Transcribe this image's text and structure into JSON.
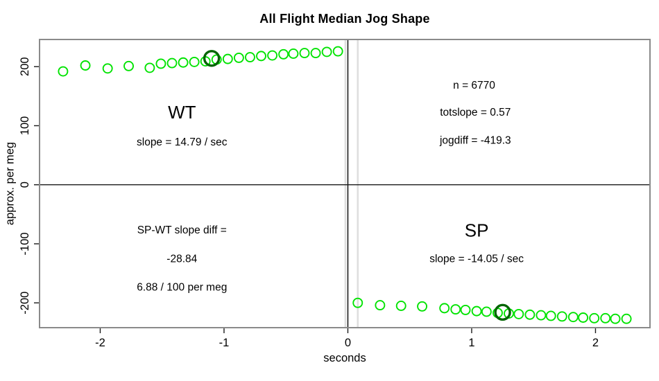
{
  "chart_data": {
    "type": "scatter",
    "title": "All Flight Median Jog Shape",
    "xlabel": "seconds",
    "ylabel": "approx. per meg",
    "xlim": [
      -2.49,
      2.44
    ],
    "ylim": [
      -242,
      246
    ],
    "x_ticks": [
      -2,
      -1,
      0,
      1,
      2
    ],
    "y_ticks": [
      -200,
      -100,
      0,
      100,
      200
    ],
    "grid": false,
    "point_color": "#00E300",
    "highlight_color": "#006400",
    "box_color": "#8a8a8a",
    "series": [
      {
        "name": "WT",
        "points": [
          [
            -2.3,
            192
          ],
          [
            -2.12,
            202
          ],
          [
            -1.94,
            197
          ],
          [
            -1.77,
            201
          ],
          [
            -1.6,
            198
          ],
          [
            -1.51,
            205
          ],
          [
            -1.42,
            206
          ],
          [
            -1.33,
            207
          ],
          [
            -1.24,
            208
          ],
          [
            -1.15,
            209
          ],
          [
            -1.06,
            212
          ],
          [
            -0.97,
            213
          ],
          [
            -0.88,
            215
          ],
          [
            -0.79,
            216
          ],
          [
            -0.7,
            218
          ],
          [
            -0.61,
            219
          ],
          [
            -0.52,
            221
          ],
          [
            -0.44,
            222
          ],
          [
            -0.35,
            223
          ],
          [
            -0.26,
            223
          ],
          [
            -0.17,
            225
          ],
          [
            -0.08,
            226
          ]
        ]
      },
      {
        "name": "SP",
        "points": [
          [
            0.08,
            -200
          ],
          [
            0.26,
            -204
          ],
          [
            0.43,
            -205
          ],
          [
            0.6,
            -206
          ],
          [
            0.78,
            -209
          ],
          [
            0.87,
            -211
          ],
          [
            0.95,
            -212
          ],
          [
            1.04,
            -214
          ],
          [
            1.12,
            -215
          ],
          [
            1.21,
            -217
          ],
          [
            1.3,
            -218
          ],
          [
            1.38,
            -219
          ],
          [
            1.47,
            -220
          ],
          [
            1.56,
            -221
          ],
          [
            1.64,
            -222
          ],
          [
            1.73,
            -223
          ],
          [
            1.82,
            -224
          ],
          [
            1.9,
            -225
          ],
          [
            1.99,
            -226
          ],
          [
            2.08,
            -226
          ],
          [
            2.16,
            -227
          ],
          [
            2.25,
            -227
          ]
        ]
      }
    ],
    "highlight_points": [
      {
        "series": "WT",
        "x": -1.1,
        "y": 214
      },
      {
        "series": "SP",
        "x": 1.25,
        "y": -216
      }
    ],
    "reference_lines": {
      "hline_y": 0,
      "vlines_black": [
        0
      ],
      "vlines_gray": [
        -0.02,
        0.08
      ],
      "gray_color": "#dedede",
      "line_color": "#1a1a1a"
    },
    "annotations": [
      {
        "text": "WT",
        "x": -1.34,
        "y": 123,
        "size": "large"
      },
      {
        "text": "slope = 14.79 / sec",
        "x": -1.34,
        "y": 72,
        "size": "normal"
      },
      {
        "text": "n = 6770",
        "x": 1.02,
        "y": 168,
        "size": "normal"
      },
      {
        "text": "totslope = 0.57",
        "x": 1.03,
        "y": 122,
        "size": "normal"
      },
      {
        "text": "jogdiff = -419.3",
        "x": 1.03,
        "y": 75,
        "size": "normal"
      },
      {
        "text": "SP-WT slope diff =",
        "x": -1.34,
        "y": -77,
        "size": "normal"
      },
      {
        "text": "-28.84",
        "x": -1.34,
        "y": -126,
        "size": "normal"
      },
      {
        "text": "6.88 / 100 per meg",
        "x": -1.34,
        "y": -174,
        "size": "normal"
      },
      {
        "text": "SP",
        "x": 1.04,
        "y": -77,
        "size": "large"
      },
      {
        "text": "slope = -14.05 / sec",
        "x": 1.04,
        "y": -126,
        "size": "normal"
      }
    ]
  }
}
